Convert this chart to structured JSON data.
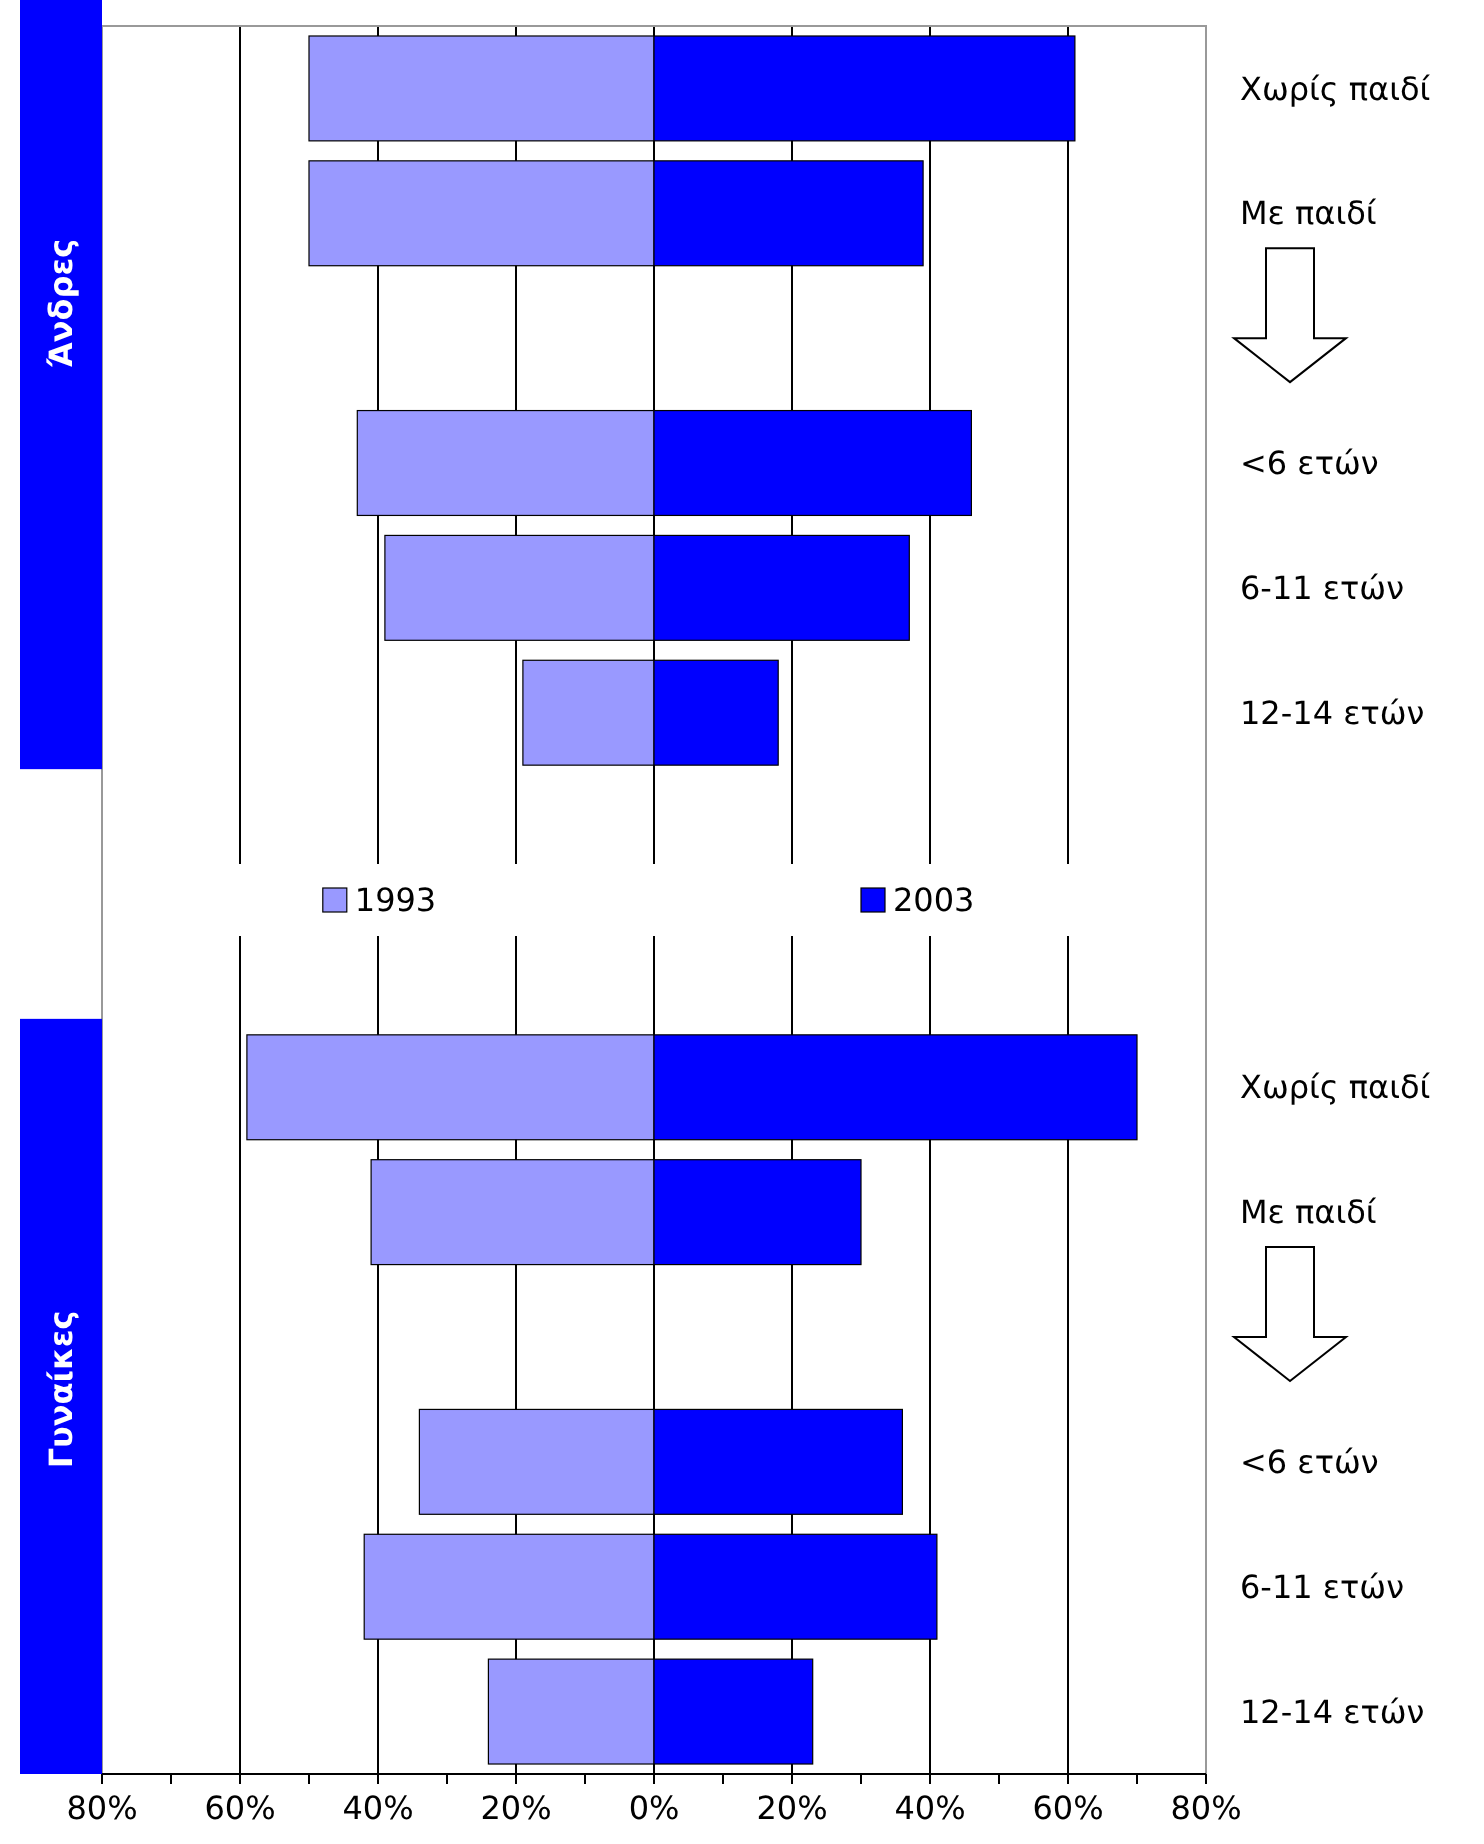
{
  "chart_data": {
    "type": "bar",
    "orientation": "horizontal",
    "stacked": true,
    "categories": [
      "Χωρίς παιδί",
      "Με παιδί",
      null,
      "<6 ετών",
      "6-11 ετών",
      "12-14 ετών",
      null,
      null,
      "Χωρίς παιδί",
      "Με παιδί",
      null,
      "<6 ετών",
      "6-11 ετών",
      "12-14 ετών"
    ],
    "series": [
      {
        "name": "1993",
        "color": "#9999ff",
        "values": [
          -50,
          -50,
          null,
          -43,
          -39,
          -19,
          null,
          null,
          -59,
          -41,
          null,
          -34,
          -42,
          -24
        ]
      },
      {
        "name": "2003",
        "color": "#0000ff",
        "values": [
          61,
          39,
          null,
          46,
          37,
          18,
          null,
          null,
          70,
          30,
          null,
          36,
          41,
          23
        ]
      }
    ],
    "xlim": [
      -80,
      80
    ],
    "xticks": [
      {
        "value": -80,
        "label": "80%"
      },
      {
        "value": -70,
        "label": null
      },
      {
        "value": -60,
        "label": "60%"
      },
      {
        "value": -50,
        "label": null
      },
      {
        "value": -40,
        "label": "40%"
      },
      {
        "value": -30,
        "label": null
      },
      {
        "value": -20,
        "label": "20%"
      },
      {
        "value": -10,
        "label": null
      },
      {
        "value": 0,
        "label": "0%"
      },
      {
        "value": 10,
        "label": null
      },
      {
        "value": 20,
        "label": "20%"
      },
      {
        "value": 30,
        "label": null
      },
      {
        "value": 40,
        "label": "40%"
      },
      {
        "value": 50,
        "label": null
      },
      {
        "value": 60,
        "label": "60%"
      },
      {
        "value": 70,
        "label": null
      },
      {
        "value": 80,
        "label": "80%"
      }
    ],
    "grid": "x",
    "legend": "center",
    "annotations": [
      "Άνδρες",
      "Γυναίκες"
    ]
  }
}
